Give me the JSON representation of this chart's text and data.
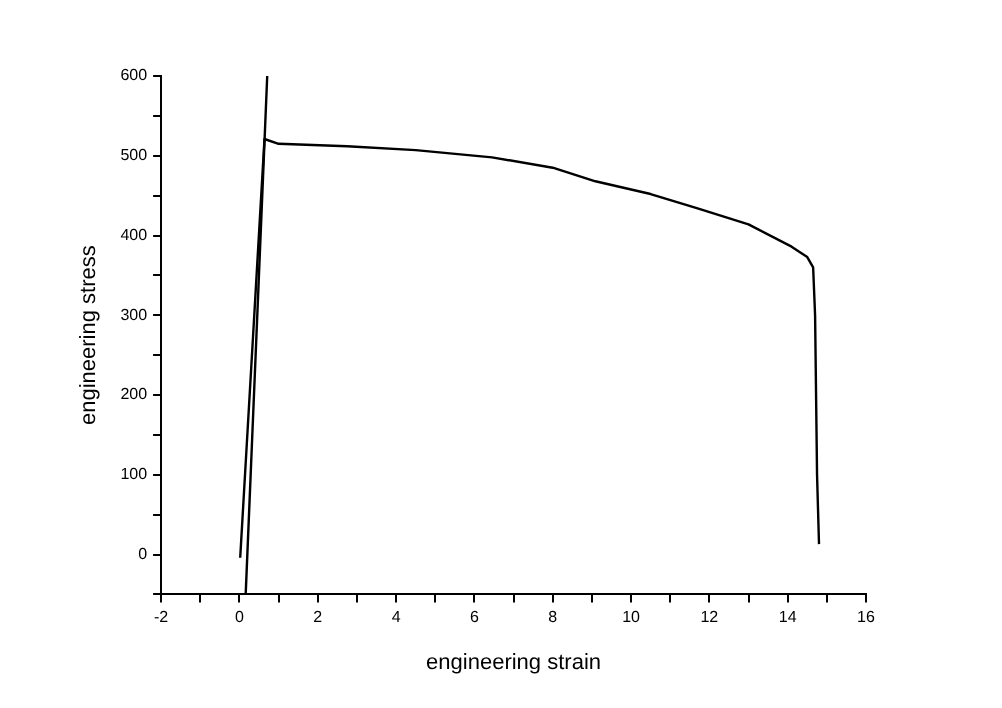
{
  "chart_data": {
    "type": "line",
    "xlabel": "engineering strain",
    "ylabel": "engineering stress",
    "xlim": [
      -2,
      16
    ],
    "ylim": [
      -50,
      600
    ],
    "xticks": [
      -2,
      {
        "value": -1,
        "label": null
      },
      0,
      {
        "value": 1,
        "label": null
      },
      2,
      {
        "value": 3,
        "label": null
      },
      4,
      {
        "value": 5,
        "label": null
      },
      6,
      {
        "value": 7,
        "label": null
      },
      8,
      {
        "value": 9,
        "label": null
      },
      10,
      {
        "value": 11,
        "label": null
      },
      12,
      {
        "value": 13,
        "label": null
      },
      14,
      {
        "value": 15,
        "label": null
      },
      16
    ],
    "yticks": [
      {
        "value": -50,
        "label": null
      },
      0,
      {
        "value": 50,
        "label": null
      },
      100,
      {
        "value": 150,
        "label": null
      },
      200,
      {
        "value": 250,
        "label": null
      },
      300,
      {
        "value": 350,
        "label": null
      },
      400,
      {
        "value": 450,
        "label": null
      },
      500,
      {
        "value": 550,
        "label": null
      },
      600
    ],
    "grid": false,
    "legend": false,
    "marker": "none",
    "line_style": "solid",
    "series": [
      {
        "color": "#000000",
        "x": [
          0.02,
          0.64,
          1.0,
          2.75,
          4.5,
          6.45,
          8.0,
          9.09,
          10.5,
          11.7,
          13.0,
          14.1,
          14.5,
          14.65,
          14.7,
          14.75,
          14.8
        ],
        "values": [
          -4,
          521,
          515,
          512,
          507,
          498,
          485,
          468,
          452,
          434,
          414,
          386,
          373,
          360,
          300,
          100,
          13
        ]
      },
      {
        "color": "#000000",
        "x": [
          0.16,
          0.71
        ],
        "values": [
          -50,
          600
        ]
      }
    ]
  }
}
